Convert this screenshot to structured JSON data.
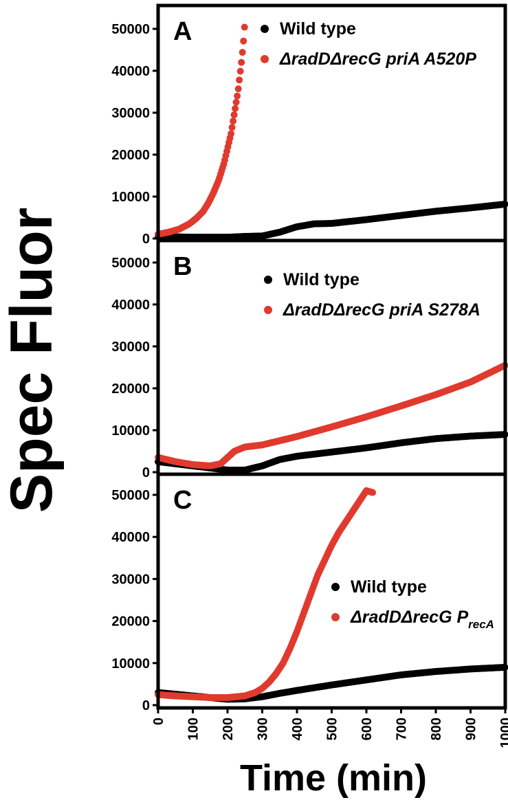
{
  "chart_data": [
    {
      "type": "scatter",
      "panel_label": "A",
      "ylim": [
        0,
        52000
      ],
      "xlim": [
        0,
        1000
      ],
      "y_ticks": [
        "0",
        "10000",
        "20000",
        "30000",
        "40000",
        "50000"
      ],
      "y_tick_values": [
        0,
        10000,
        20000,
        30000,
        40000,
        50000
      ],
      "legend": {
        "placement": "top-right",
        "entries": [
          {
            "label_parts": [
              "Wild type"
            ],
            "color": "#000000"
          },
          {
            "label_parts": [
              "ΔradDΔrecG priA A520P"
            ],
            "color": "#e03a2f"
          }
        ]
      },
      "series": [
        {
          "name": "Wild type",
          "color": "#000000",
          "x": [
            0,
            100,
            200,
            250,
            300,
            350,
            400,
            450,
            500,
            600,
            700,
            800,
            900,
            1000
          ],
          "y": [
            500,
            300,
            300,
            500,
            600,
            1500,
            2800,
            3500,
            3600,
            4500,
            5500,
            6500,
            7300,
            8200
          ]
        },
        {
          "name": "ΔradDΔrecG priA A520P",
          "color": "#e03a2f",
          "x": [
            0,
            30,
            60,
            90,
            110,
            130,
            145,
            160,
            175,
            190,
            200,
            210,
            220,
            230,
            240,
            245,
            250
          ],
          "y": [
            1000,
            1500,
            2200,
            3500,
            4800,
            6500,
            8500,
            11000,
            14000,
            18000,
            21500,
            25000,
            30000,
            35000,
            42000,
            46000,
            51500
          ]
        }
      ]
    },
    {
      "type": "scatter",
      "panel_label": "B",
      "ylim": [
        0,
        52000
      ],
      "xlim": [
        0,
        1000
      ],
      "y_ticks": [
        "0",
        "10000",
        "20000",
        "30000",
        "40000",
        "50000"
      ],
      "y_tick_values": [
        0,
        10000,
        20000,
        30000,
        40000,
        50000
      ],
      "legend": {
        "placement": "top-right",
        "entries": [
          {
            "label_parts": [
              "Wild type"
            ],
            "color": "#000000"
          },
          {
            "label_parts": [
              "ΔradDΔrecG priA S278A"
            ],
            "color": "#e03a2f"
          }
        ]
      },
      "series": [
        {
          "name": "Wild type",
          "color": "#000000",
          "x": [
            0,
            50,
            100,
            150,
            200,
            250,
            300,
            350,
            400,
            500,
            600,
            700,
            800,
            900,
            1000
          ],
          "y": [
            2500,
            2000,
            1500,
            1000,
            500,
            500,
            1500,
            3000,
            3800,
            4800,
            5800,
            7000,
            8000,
            8600,
            9000
          ]
        },
        {
          "name": "ΔradDΔrecG priA S278A",
          "color": "#e03a2f",
          "x": [
            0,
            50,
            100,
            150,
            180,
            200,
            220,
            250,
            300,
            350,
            400,
            500,
            600,
            700,
            800,
            900,
            1000
          ],
          "y": [
            3500,
            2500,
            1800,
            1500,
            2000,
            3500,
            5000,
            6000,
            6500,
            7500,
            8500,
            10800,
            13200,
            15800,
            18500,
            21500,
            25500
          ]
        }
      ]
    },
    {
      "type": "scatter",
      "panel_label": "C",
      "ylim": [
        0,
        52000
      ],
      "xlim": [
        0,
        1000
      ],
      "y_ticks": [
        "0",
        "10000",
        "20000",
        "30000",
        "40000",
        "50000"
      ],
      "y_tick_values": [
        0,
        10000,
        20000,
        30000,
        40000,
        50000
      ],
      "x_ticks": [
        "0",
        "100",
        "200",
        "300",
        "400",
        "500",
        "600",
        "700",
        "800",
        "900",
        "1000"
      ],
      "x_tick_values": [
        0,
        100,
        200,
        300,
        400,
        500,
        600,
        700,
        800,
        900,
        1000
      ],
      "legend": {
        "placement": "right",
        "entries": [
          {
            "label_parts": [
              "Wild type"
            ],
            "color": "#000000"
          },
          {
            "label_parts": [
              "ΔradDΔrecG P",
              "recA"
            ],
            "color": "#e03a2f"
          }
        ]
      },
      "series": [
        {
          "name": "Wild type",
          "color": "#000000",
          "x": [
            0,
            50,
            100,
            150,
            200,
            250,
            300,
            350,
            400,
            500,
            600,
            700,
            800,
            900,
            1000
          ],
          "y": [
            3000,
            2600,
            2200,
            1800,
            1400,
            1500,
            2000,
            2800,
            3500,
            4800,
            6000,
            7200,
            8000,
            8600,
            9000
          ]
        },
        {
          "name": "ΔradDΔrecG PrecA",
          "color": "#e03a2f",
          "x": [
            0,
            50,
            100,
            150,
            200,
            250,
            280,
            300,
            320,
            340,
            360,
            380,
            400,
            420,
            440,
            460,
            480,
            500,
            520,
            540,
            560,
            580,
            600,
            620
          ],
          "y": [
            2500,
            2200,
            2000,
            1800,
            1800,
            2200,
            3000,
            4000,
            5500,
            7500,
            10000,
            13500,
            17500,
            22000,
            26500,
            31000,
            34500,
            38000,
            41000,
            43500,
            46000,
            48500,
            51000,
            50500
          ]
        }
      ]
    }
  ],
  "axes": {
    "ylabel": "Spec Fluor",
    "xlabel": "Time (min)"
  }
}
